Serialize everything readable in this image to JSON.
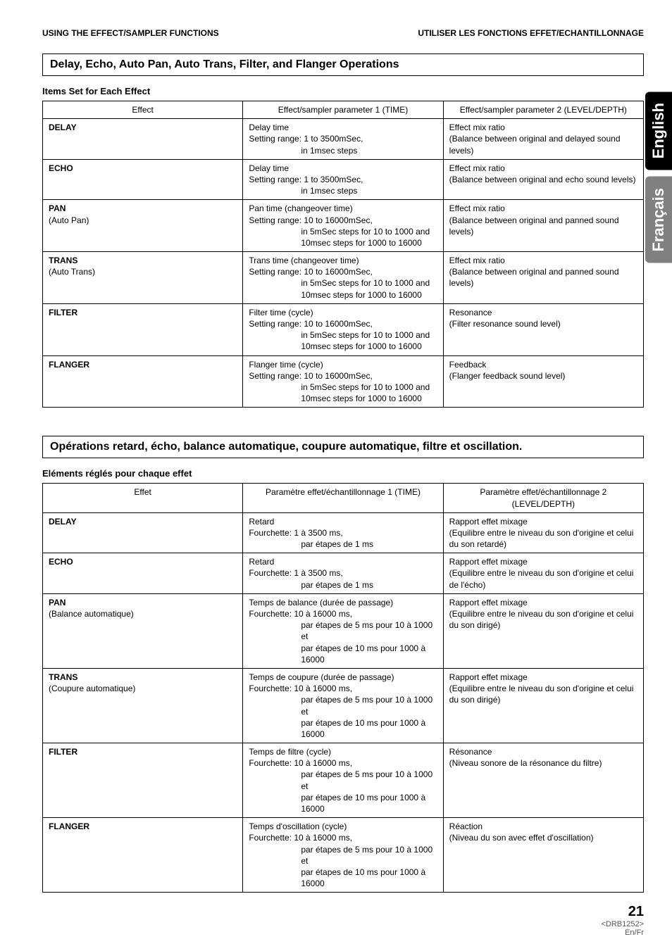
{
  "top": {
    "left": "USING THE EFFECT/SAMPLER FUNCTIONS",
    "right": "UTILISER LES FONCTIONS EFFET/ECHANTILLONNAGE"
  },
  "tabs": {
    "english": "English",
    "francais": "Français"
  },
  "en": {
    "title": "Delay, Echo, Auto Pan, Auto Trans, Filter, and Flanger Operations",
    "subheading": "Items Set for Each Effect",
    "cols": {
      "c1": "Effect",
      "c2": "Effect/sampler parameter 1 (TIME)",
      "c3": "Effect/sampler parameter 2 (LEVEL/DEPTH)"
    },
    "rows": {
      "delay": {
        "name": "DELAY",
        "p1a": "Delay time",
        "p1b": "Setting range: 1 to 3500mSec,",
        "p1c": "in 1msec steps",
        "p2a": "Effect mix ratio",
        "p2b": "(Balance between original and delayed sound levels)"
      },
      "echo": {
        "name": "ECHO",
        "p1a": "Delay time",
        "p1b": "Setting range: 1 to 3500mSec,",
        "p1c": "in 1msec steps",
        "p2a": "Effect mix ratio",
        "p2b": "(Balance between original and echo sound levels)"
      },
      "pan": {
        "name": "PAN",
        "sub": "(Auto Pan)",
        "p1a": "Pan time (changeover time)",
        "p1b": "Setting range: 10 to 16000mSec,",
        "p1c": "in 5mSec steps for 10 to 1000 and",
        "p1d": "10msec steps for 1000 to 16000",
        "p2a": "Effect mix ratio",
        "p2b": "(Balance between original and panned sound levels)"
      },
      "trans": {
        "name": "TRANS",
        "sub": "(Auto Trans)",
        "p1a": "Trans time (changeover time)",
        "p1b": "Setting range: 10 to 16000mSec,",
        "p1c": "in 5mSec steps for 10 to 1000 and",
        "p1d": "10msec steps for 1000 to 16000",
        "p2a": "Effect mix ratio",
        "p2b": "(Balance between original and panned sound levels)"
      },
      "filter": {
        "name": "FILTER",
        "p1a": "Filter time (cycle)",
        "p1b": "Setting range: 10 to 16000mSec,",
        "p1c": "in 5mSec steps for 10 to 1000 and",
        "p1d": "10msec steps for 1000 to 16000",
        "p2a": "Resonance",
        "p2b": "(Filter resonance sound level)"
      },
      "flanger": {
        "name": "FLANGER",
        "p1a": "Flanger time (cycle)",
        "p1b": "Setting range: 10 to 16000mSec,",
        "p1c": "in 5mSec steps for 10 to 1000 and",
        "p1d": "10msec steps for 1000 to 16000",
        "p2a": "Feedback",
        "p2b": "(Flanger feedback sound level)"
      }
    }
  },
  "fr": {
    "title": "Opérations retard, écho, balance automatique, coupure automatique, filtre et oscillation.",
    "subheading": "Eléments réglés pour chaque effet",
    "cols": {
      "c1": "Effet",
      "c2": "Paramètre effet/échantillonnage 1 (TIME)",
      "c3": "Paramètre effet/échantillonnage 2 (LEVEL/DEPTH)"
    },
    "rows": {
      "delay": {
        "name": "DELAY",
        "p1a": "Retard",
        "p1b": "Fourchette: 1 à 3500 ms,",
        "p1c": "par étapes de 1 ms",
        "p2a": "Rapport effet mixage",
        "p2b": "(Equilibre entre le niveau du son d'origine et celui du son retardé)"
      },
      "echo": {
        "name": "ECHO",
        "p1a": "Retard",
        "p1b": "Fourchette: 1 à 3500 ms,",
        "p1c": "par étapes de 1 ms",
        "p2a": "Rapport effet mixage",
        "p2b": "(Equilibre entre le niveau du son d'origine et celui de l'écho)"
      },
      "pan": {
        "name": "PAN",
        "sub": "(Balance automatique)",
        "p1a": "Temps de balance (durée de passage)",
        "p1b": "Fourchette: 10 à 16000 ms,",
        "p1c": "par étapes de 5 ms pour 10 à 1000 et",
        "p1d": "par étapes de 10 ms pour 1000 à 16000",
        "p2a": "Rapport effet mixage",
        "p2b": "(Equilibre entre le niveau du son d'origine et celui du son dirigé)"
      },
      "trans": {
        "name": "TRANS",
        "sub": "(Coupure automatique)",
        "p1a": "Temps de coupure (durée de passage)",
        "p1b": "Fourchette: 10 à 16000 ms,",
        "p1c": "par étapes de 5 ms pour 10 à 1000 et",
        "p1d": "par étapes de 10 ms pour 1000 à 16000",
        "p2a": "Rapport effet mixage",
        "p2b": "(Equilibre entre le niveau du son d'origine et celui du son dirigé)"
      },
      "filter": {
        "name": "FILTER",
        "p1a": "Temps de filtre (cycle)",
        "p1b": "Fourchette: 10 à 16000 ms,",
        "p1c": "par étapes de 5 ms pour 10 à 1000 et",
        "p1d": "par étapes de 10 ms pour 1000 à 16000",
        "p2a": "Résonance",
        "p2b": "(Niveau sonore de la résonance du filtre)"
      },
      "flanger": {
        "name": "FLANGER",
        "p1a": "Temps d'oscillation (cycle)",
        "p1b": "Fourchette: 10 à 16000 ms,",
        "p1c": "par étapes de 5 ms pour 10 à 1000 et",
        "p1d": "par étapes de 10 ms pour 1000 à 16000",
        "p2a": "Réaction",
        "p2b": "(Niveau du son avec effet d'oscillation)"
      }
    }
  },
  "footer": {
    "page": "21",
    "code": "<DRB1252>",
    "langs": "En/Fr"
  }
}
